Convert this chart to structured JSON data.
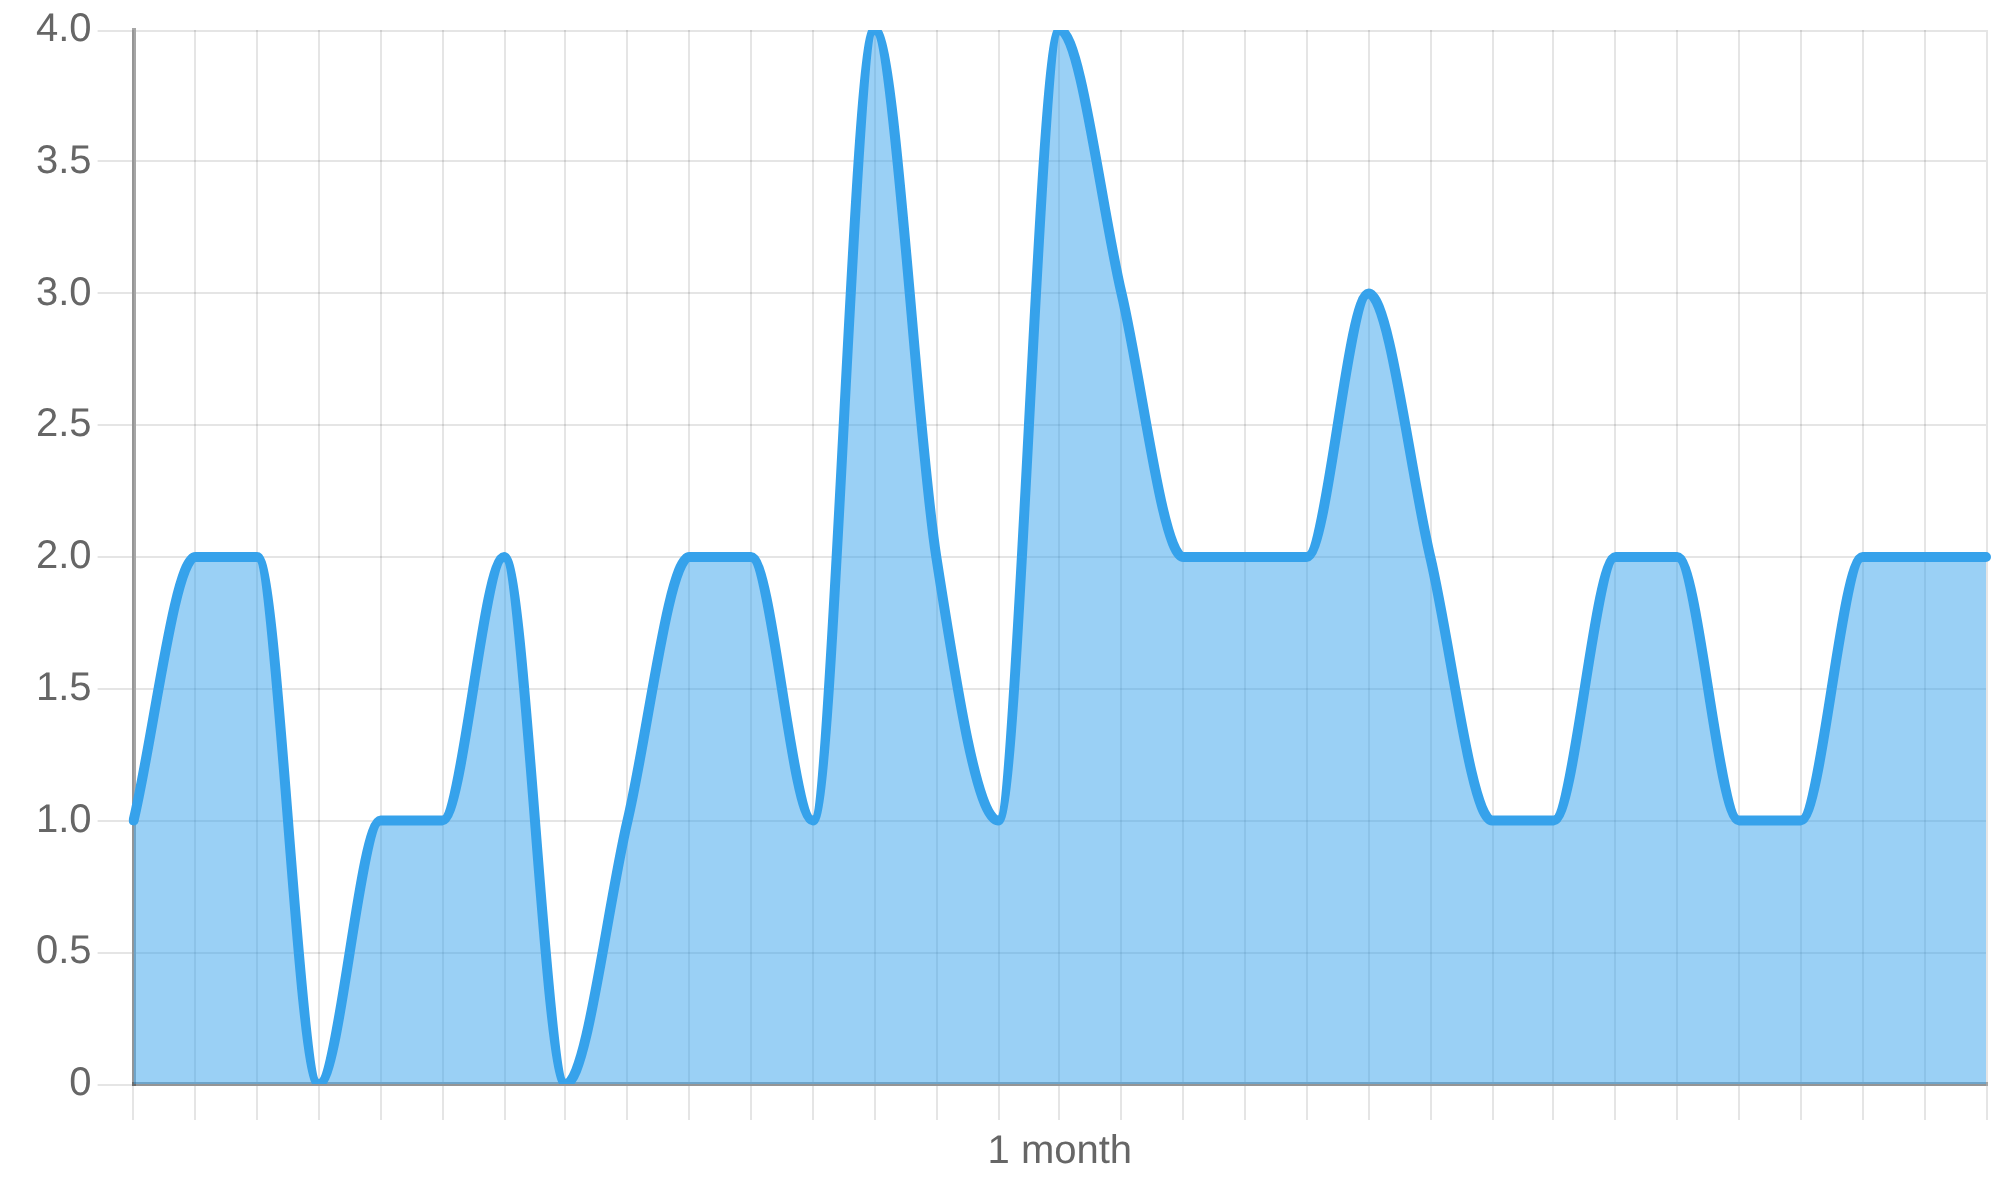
{
  "chart_data": {
    "type": "area",
    "categories": [
      null,
      null,
      null,
      null,
      null,
      null,
      null,
      null,
      null,
      null,
      null,
      null,
      null,
      null,
      null,
      "1 month",
      null,
      null,
      null,
      null,
      null,
      null,
      null,
      null,
      null,
      null,
      null,
      null,
      null,
      null,
      null
    ],
    "values": [
      1,
      2,
      2,
      0,
      1,
      1,
      2,
      0,
      1,
      2,
      2,
      1,
      4,
      2,
      1,
      4,
      3,
      2,
      2,
      2,
      3,
      2,
      1,
      1,
      2,
      2,
      1,
      1,
      2,
      2,
      2
    ],
    "color": "#36a2eb",
    "ylim": [
      0,
      4
    ],
    "yticks": [
      0,
      0.5,
      {
        "value": 1,
        "label": "1.0"
      },
      1.5,
      {
        "value": 2,
        "label": "2.0"
      },
      2.5,
      {
        "value": 3,
        "label": "3.0"
      },
      3.5,
      {
        "value": 4,
        "label": "4.0"
      }
    ],
    "grid": true,
    "marker": "none",
    "line_style": "solid"
  }
}
